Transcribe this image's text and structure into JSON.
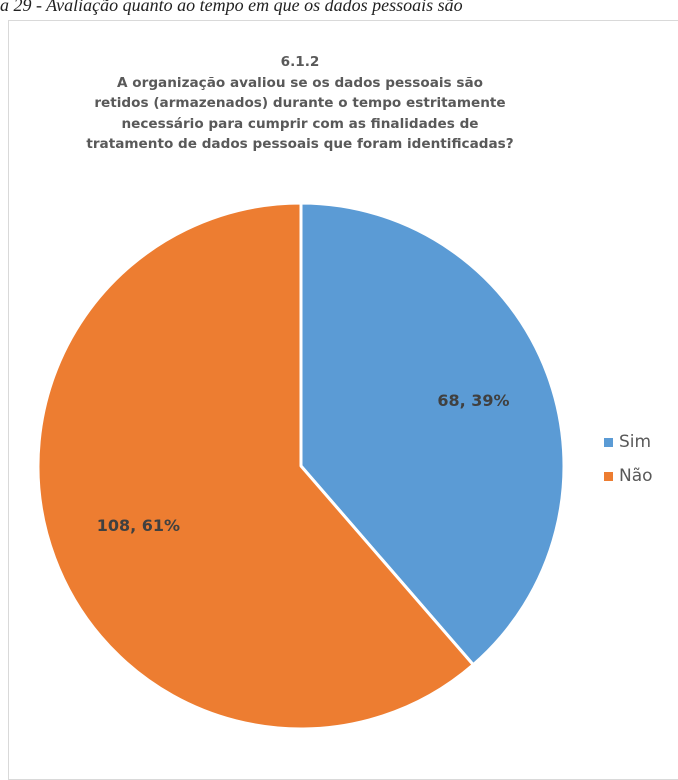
{
  "caption": "a 29 - Avaliação quanto ao tempo em que os dados pessoais são",
  "chart_data": {
    "type": "pie",
    "title_lines": [
      "6.1.2",
      "A organização avaliou se os dados pessoais são",
      "retidos (armazenados) durante o tempo estritamente",
      "necessário para cumprir com as finalidades de",
      "tratamento de dados pessoais que foram identificadas?"
    ],
    "slices": [
      {
        "name": "Sim",
        "value": 68,
        "percent": 39,
        "label": "68, 39%",
        "color": "#5b9bd5"
      },
      {
        "name": "Não",
        "value": 108,
        "percent": 61,
        "label": "108, 61%",
        "color": "#ed7d31"
      }
    ],
    "legend_position": "right",
    "start_angle": "12 o'clock",
    "direction": "clockwise"
  }
}
